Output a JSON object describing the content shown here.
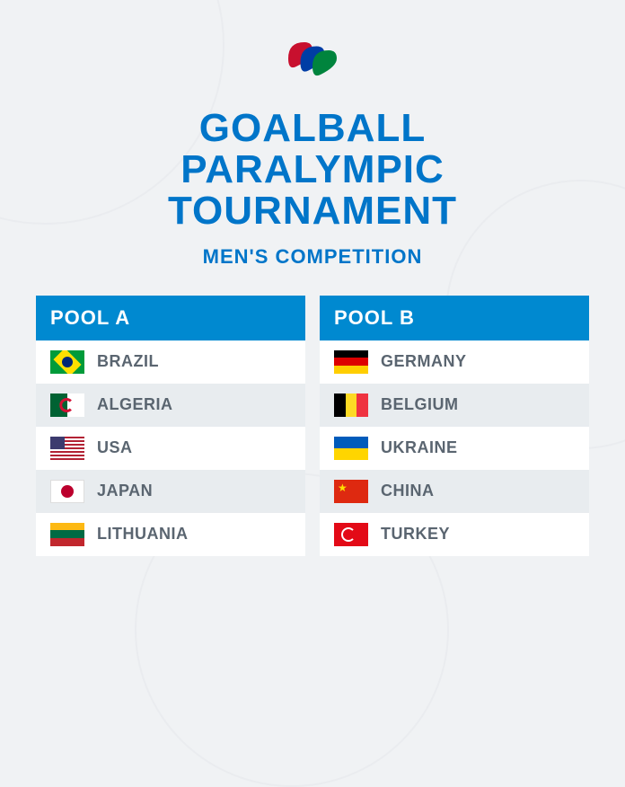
{
  "colors": {
    "background": "#f0f2f4",
    "title": "#0075c9",
    "subtitle": "#0075c9",
    "pool_header_bg": "#0089d0",
    "pool_header_text": "#ffffff",
    "row_odd_bg": "#ffffff",
    "row_even_bg": "#e8ecef",
    "team_text": "#5a6570"
  },
  "typography": {
    "title_fontsize": 44,
    "subtitle_fontsize": 22,
    "pool_header_fontsize": 22,
    "team_fontsize": 18
  },
  "logo": {
    "agito_red": "#c8102e",
    "agito_blue": "#003da5",
    "agito_green": "#00843d"
  },
  "title_line1": "GOALBALL",
  "title_line2": "PARALYMPIC",
  "title_line3": "TOURNAMENT",
  "subtitle": "MEN'S COMPETITION",
  "pools": [
    {
      "header": "POOL A",
      "teams": [
        {
          "name": "BRAZIL",
          "flag_class": "flag-brazil"
        },
        {
          "name": "ALGERIA",
          "flag_class": "flag-algeria"
        },
        {
          "name": "USA",
          "flag_class": "flag-usa"
        },
        {
          "name": "JAPAN",
          "flag_class": "flag-japan"
        },
        {
          "name": "LITHUANIA",
          "flag_class": "flag-lithuania"
        }
      ]
    },
    {
      "header": "POOL B",
      "teams": [
        {
          "name": "GERMANY",
          "flag_class": "flag-germany"
        },
        {
          "name": "BELGIUM",
          "flag_class": "flag-belgium"
        },
        {
          "name": "UKRAINE",
          "flag_class": "flag-ukraine"
        },
        {
          "name": "CHINA",
          "flag_class": "flag-china"
        },
        {
          "name": "TURKEY",
          "flag_class": "flag-turkey"
        }
      ]
    }
  ]
}
